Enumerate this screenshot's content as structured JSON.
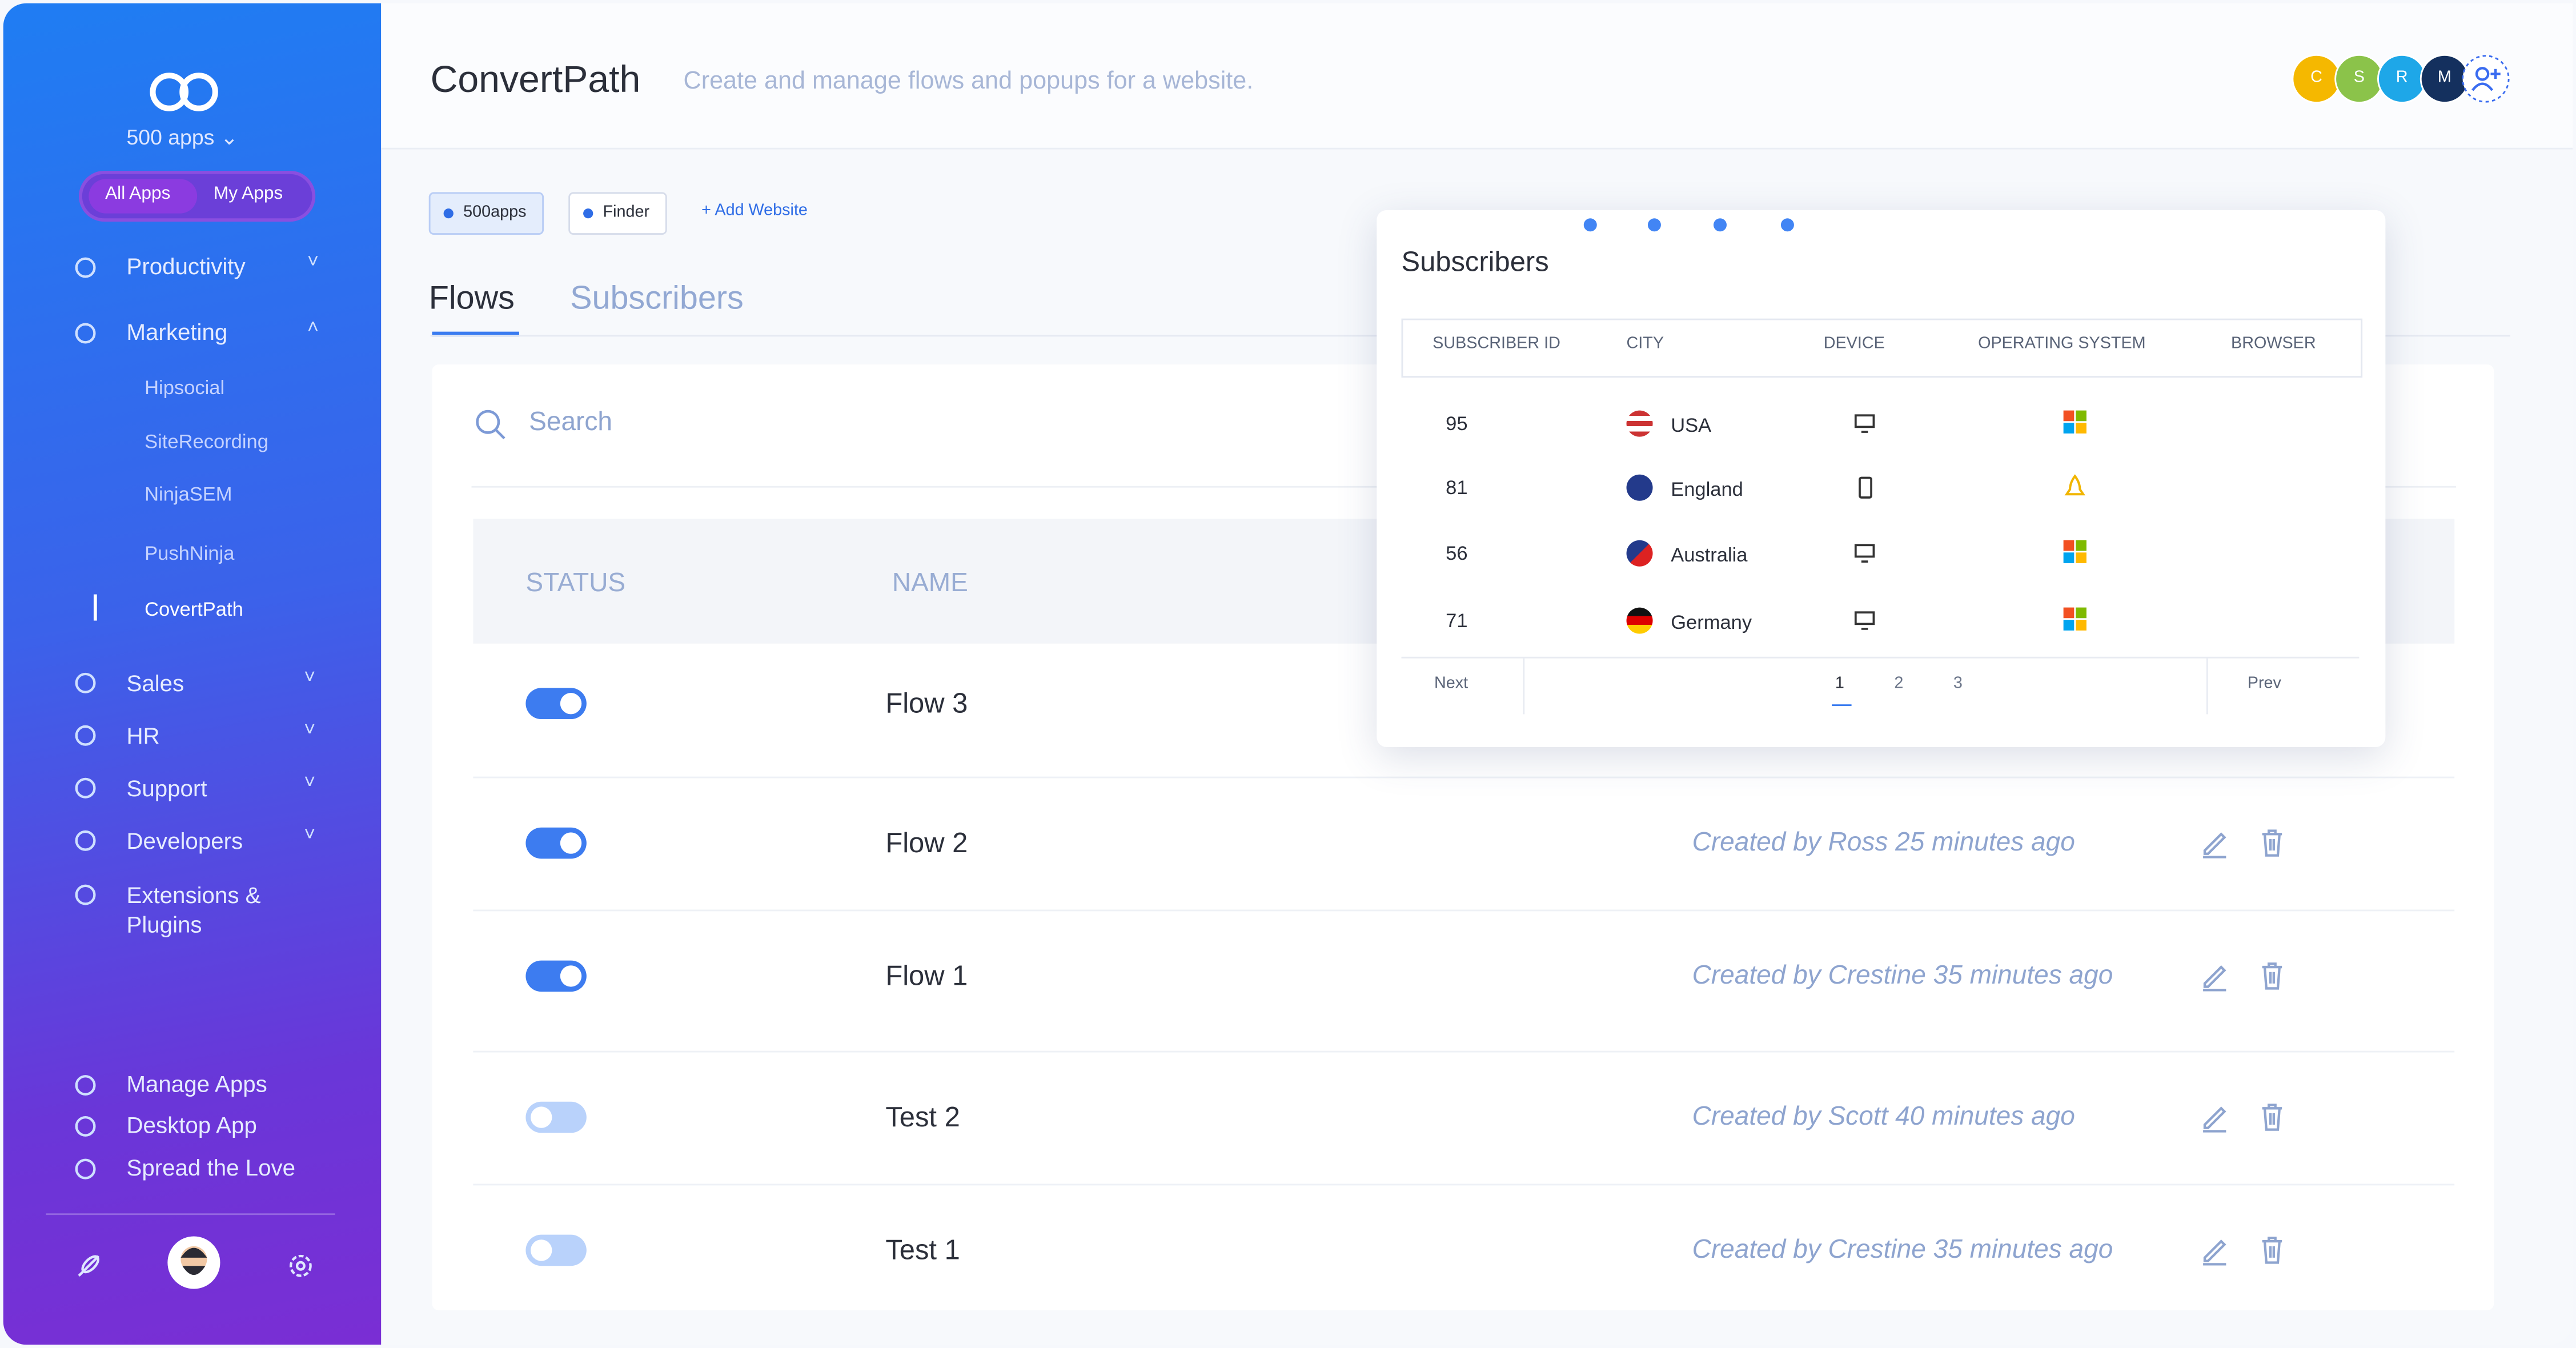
{
  "sidebar": {
    "brand": "500 apps",
    "tabs": [
      "All Apps",
      "My Apps"
    ],
    "menu": [
      "Productivity",
      "Marketing"
    ],
    "submenu": [
      "Hipsocial",
      "SiteRecording",
      "NinjaSEM",
      "PushNinja",
      "CovertPath"
    ],
    "more": [
      "Sales",
      "HR",
      "Support",
      "Developers",
      "Extensions & Plugins"
    ],
    "bottom": [
      "Manage Apps",
      "Desktop App",
      "Spread the Love"
    ]
  },
  "header": {
    "title": "ConvertPath",
    "subtitle": "Create and manage flows and popups for a website.",
    "avatars": [
      "C",
      "S",
      "R",
      "M"
    ]
  },
  "websites": [
    "500apps",
    "Finder"
  ],
  "add_website": "+ Add Website",
  "tabs": [
    "Flows",
    "Subscribers"
  ],
  "search_placeholder": "Search",
  "table": {
    "columns": [
      "STATUS",
      "NAME"
    ],
    "rows": [
      {
        "name": "Flow 3",
        "on": true
      },
      {
        "name": "Flow 2",
        "on": true,
        "created": "Created by Ross 25 minutes ago"
      },
      {
        "name": "Flow 1",
        "on": true,
        "created": "Created by Crestine 35 minutes ago"
      },
      {
        "name": "Test 2",
        "on": false,
        "created": "Created by Scott 40 minutes ago"
      },
      {
        "name": "Test 1",
        "on": false,
        "created": "Created by Crestine 35 minutes ago"
      }
    ]
  },
  "popup": {
    "title": "Subscribers",
    "columns": [
      "SUBSCRIBER ID",
      "CITY",
      "DEVICE",
      "OPERATING SYSTEM",
      "BROWSER"
    ],
    "rows": [
      {
        "id": 95,
        "city": "USA",
        "device": "desktop",
        "os": "windows"
      },
      {
        "id": 81,
        "city": "England",
        "device": "mobile",
        "os": "linux"
      },
      {
        "id": 56,
        "city": "Australia",
        "device": "desktop",
        "os": "windows"
      },
      {
        "id": 71,
        "city": "Germany",
        "device": "desktop",
        "os": "windows"
      }
    ],
    "next": "Next",
    "pages": [
      1,
      2,
      3
    ],
    "prev": "Prev"
  }
}
